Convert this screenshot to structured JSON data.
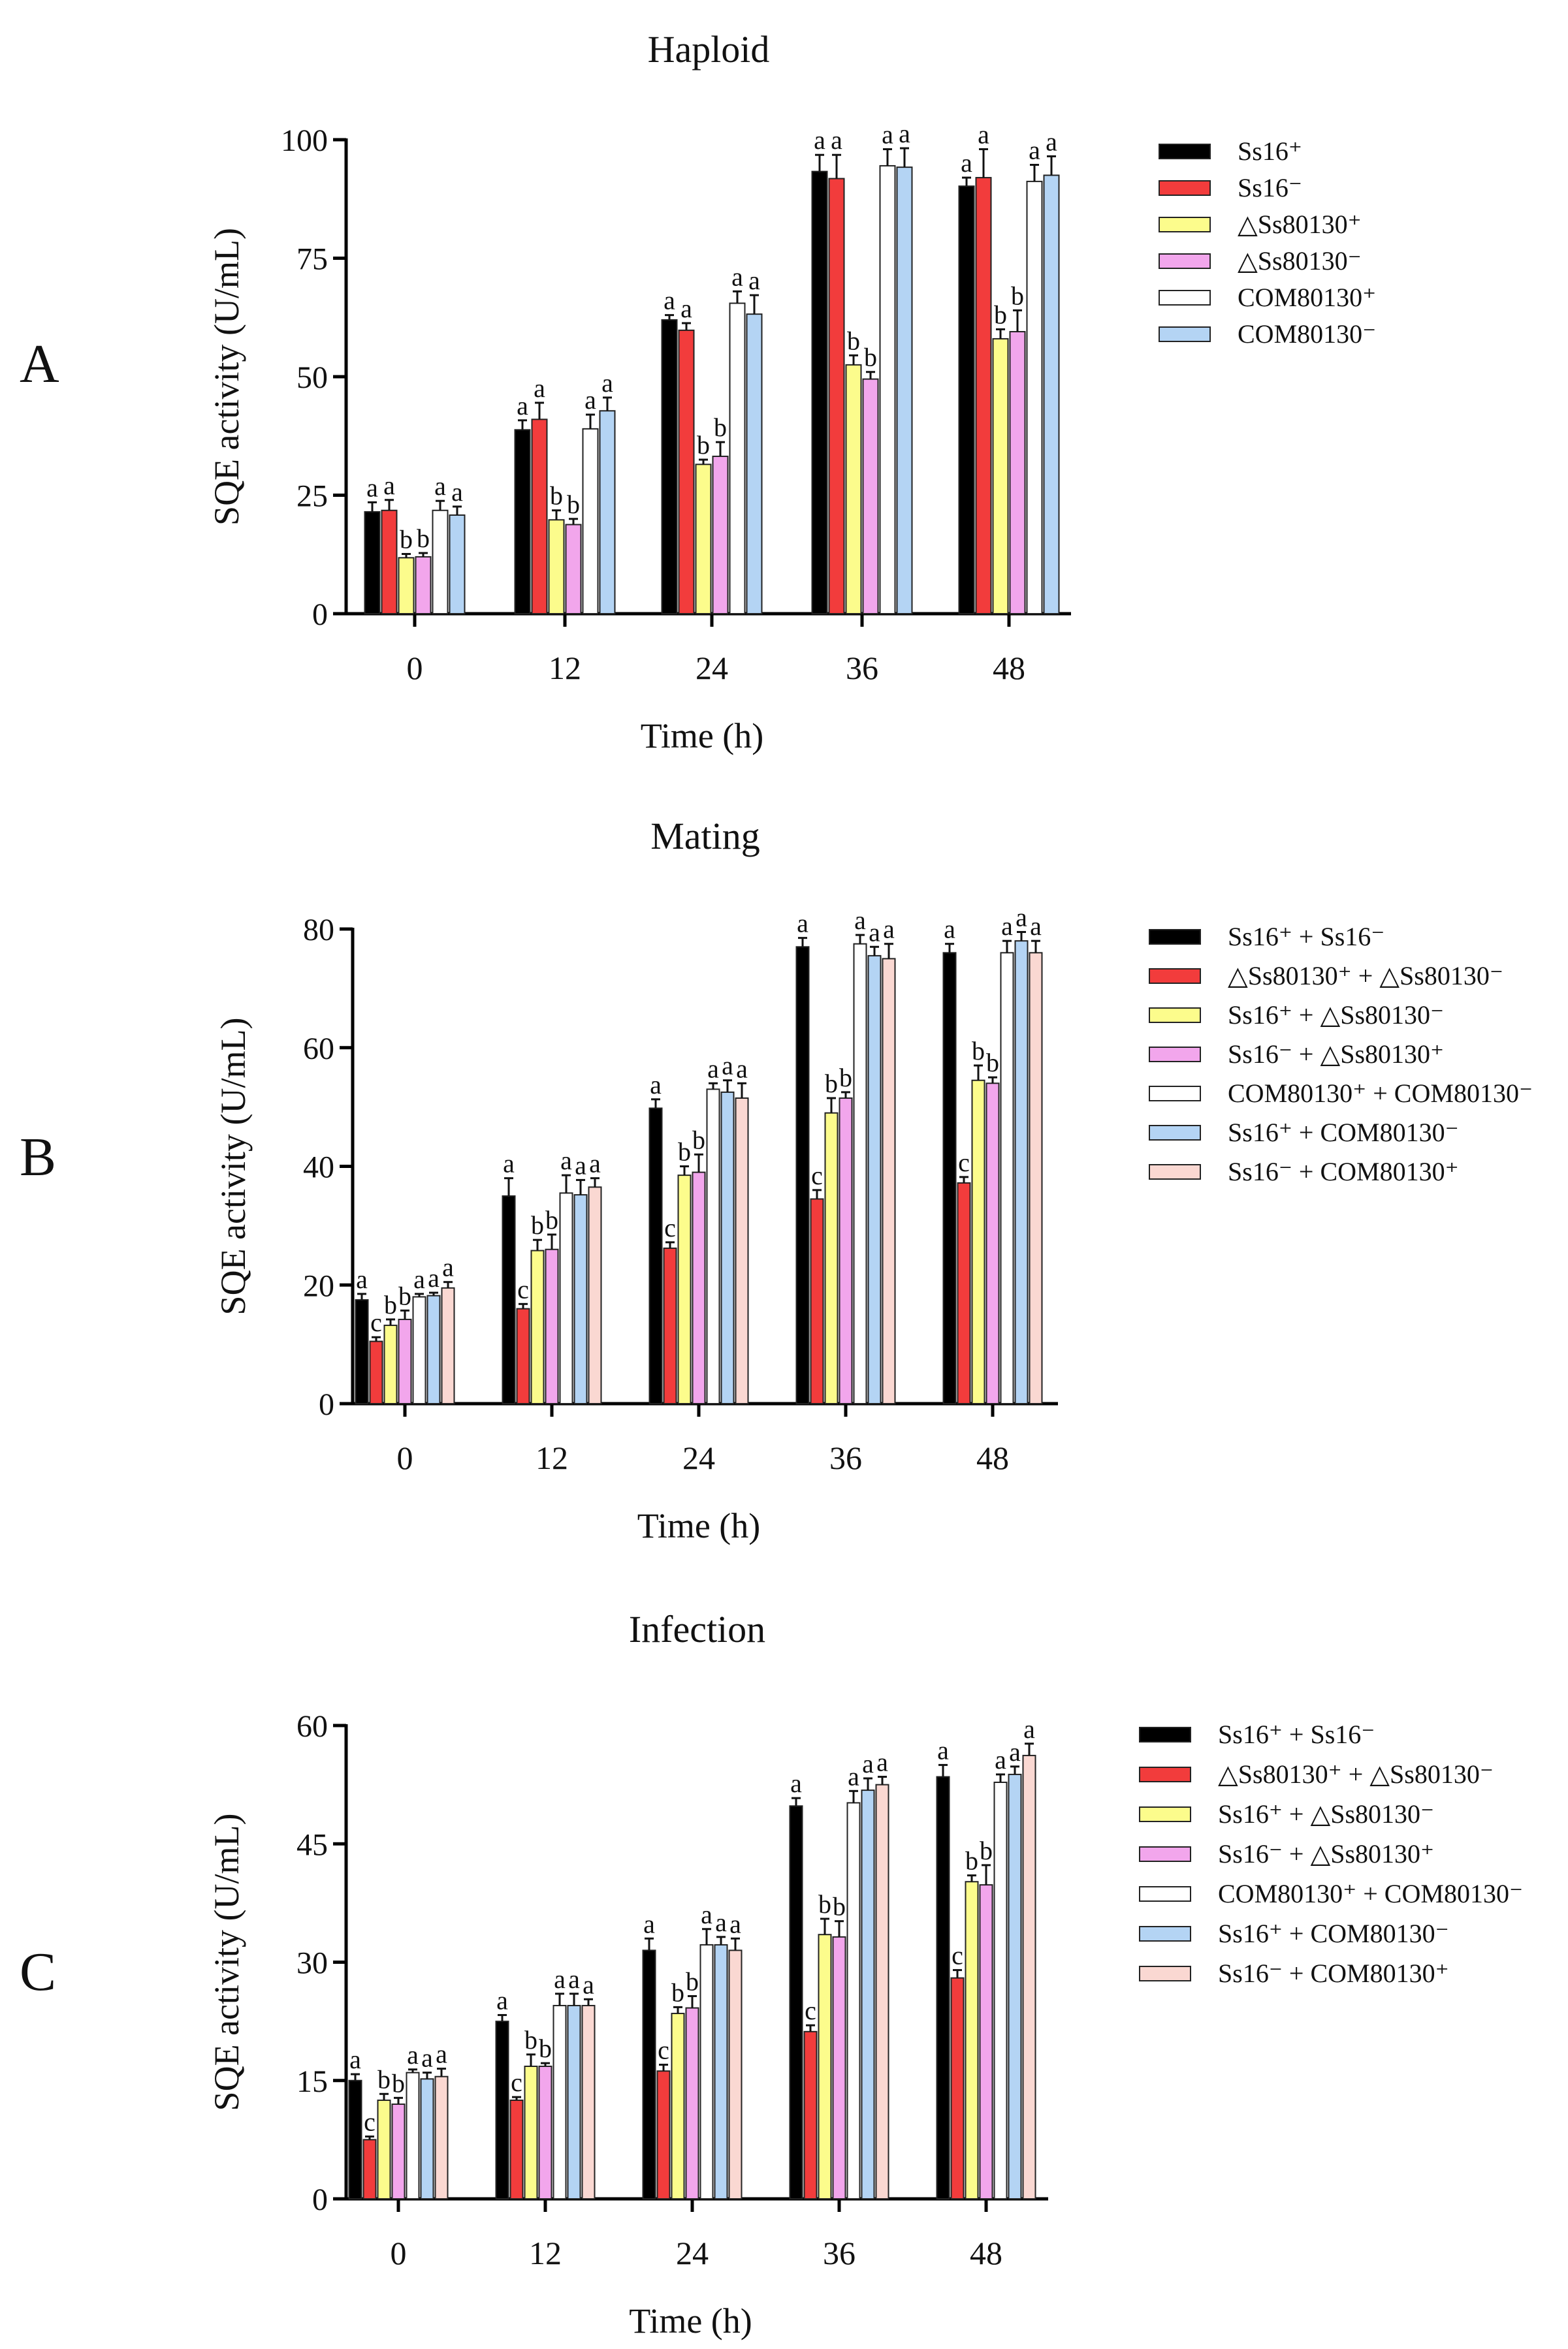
{
  "figure": {
    "panels": [
      "A",
      "B",
      "C"
    ]
  },
  "colors": {
    "black": "#000000",
    "red": "#f23c3c",
    "yellow": "#fcfc8c",
    "pink": "#f2a6ec",
    "white": "#ffffff",
    "lightblue": "#b4d4f4",
    "lightpink": "#fad8d2"
  },
  "chart_data": [
    {
      "panel": "A",
      "type": "bar",
      "title": "Haploid",
      "xlabel": "Time (h)",
      "ylabel": "SQE activity (U/mL)",
      "ylim": [
        0,
        100
      ],
      "yticks": [
        0,
        25,
        50,
        75,
        100
      ],
      "categories": [
        "0",
        "12",
        "24",
        "36",
        "48"
      ],
      "legend_position": "top-right",
      "series": [
        {
          "name": "Ss16⁺",
          "color_key": "black",
          "values": [
            21.5,
            38.8,
            62.0,
            93.3,
            90.2
          ],
          "errors": [
            2.0,
            2.0,
            1.0,
            3.5,
            1.8
          ],
          "letters": [
            "a",
            "a",
            "a",
            "a",
            "a"
          ]
        },
        {
          "name": "Ss16⁻",
          "color_key": "red",
          "values": [
            21.8,
            41.0,
            59.8,
            91.8,
            92.0
          ],
          "errors": [
            2.2,
            3.5,
            1.5,
            5.0,
            6.0
          ],
          "letters": [
            "a",
            "a",
            "a",
            "a",
            "a"
          ]
        },
        {
          "name": "△Ss80130⁺",
          "color_key": "yellow",
          "values": [
            11.8,
            19.8,
            31.5,
            52.5,
            58.0
          ],
          "errors": [
            0.8,
            2.0,
            1.0,
            2.0,
            2.0
          ],
          "letters": [
            "b",
            "b",
            "b",
            "b",
            "b"
          ]
        },
        {
          "name": "△Ss80130⁻",
          "color_key": "pink",
          "values": [
            12.0,
            18.8,
            33.2,
            49.5,
            59.5
          ],
          "errors": [
            0.8,
            1.2,
            3.0,
            1.5,
            4.5
          ],
          "letters": [
            "b",
            "b",
            "b",
            "b",
            "b"
          ]
        },
        {
          "name": "COM80130⁺",
          "color_key": "white",
          "values": [
            21.8,
            39.0,
            65.5,
            94.5,
            91.2
          ],
          "errors": [
            2.0,
            3.0,
            2.5,
            3.5,
            3.5
          ],
          "letters": [
            "a",
            "a",
            "a",
            "a",
            "a"
          ]
        },
        {
          "name": "COM80130⁻",
          "color_key": "lightblue",
          "values": [
            20.8,
            42.8,
            63.2,
            94.2,
            92.5
          ],
          "errors": [
            1.8,
            2.8,
            4.0,
            4.0,
            4.0
          ],
          "letters": [
            "a",
            "a",
            "a",
            "a",
            "a"
          ]
        }
      ]
    },
    {
      "panel": "B",
      "type": "bar",
      "title": "Mating",
      "xlabel": "Time (h)",
      "ylabel": "SQE activity (U/mL)",
      "ylim": [
        0,
        80
      ],
      "yticks": [
        0,
        20,
        40,
        60,
        80
      ],
      "categories": [
        "0",
        "12",
        "24",
        "36",
        "48"
      ],
      "legend_position": "top-right",
      "series": [
        {
          "name": "Ss16⁺ + Ss16⁻",
          "color_key": "black",
          "values": [
            17.5,
            35.0,
            49.8,
            77.0,
            76.0
          ],
          "errors": [
            1.0,
            3.0,
            1.5,
            1.5,
            1.5
          ],
          "letters": [
            "a",
            "a",
            "a",
            "a",
            "a"
          ]
        },
        {
          "name": "△Ss80130⁺ + △Ss80130⁻",
          "color_key": "red",
          "values": [
            10.5,
            16.0,
            26.2,
            34.5,
            37.2
          ],
          "errors": [
            0.7,
            0.8,
            1.0,
            1.5,
            1.0
          ],
          "letters": [
            "c",
            "c",
            "c",
            "c",
            "c"
          ]
        },
        {
          "name": "Ss16⁺ + △Ss80130⁻",
          "color_key": "yellow",
          "values": [
            13.2,
            25.8,
            38.5,
            49.0,
            54.5
          ],
          "errors": [
            1.0,
            1.8,
            1.5,
            2.5,
            2.5
          ],
          "letters": [
            "b",
            "b",
            "b",
            "b",
            "b"
          ]
        },
        {
          "name": "Ss16⁻ + △Ss80130⁺",
          "color_key": "pink",
          "values": [
            14.2,
            26.0,
            39.0,
            51.5,
            54.0
          ],
          "errors": [
            1.5,
            2.5,
            3.0,
            1.0,
            1.0
          ],
          "letters": [
            "b",
            "b",
            "b",
            "b",
            "b"
          ]
        },
        {
          "name": "COM80130⁺ + COM80130⁻",
          "color_key": "white",
          "values": [
            18.0,
            35.5,
            53.0,
            77.5,
            76.0
          ],
          "errors": [
            0.5,
            3.0,
            1.0,
            1.5,
            2.0
          ],
          "letters": [
            "a",
            "a",
            "a",
            "a",
            "a"
          ]
        },
        {
          "name": "Ss16⁺ + COM80130⁻",
          "color_key": "lightblue",
          "values": [
            18.2,
            35.2,
            52.5,
            75.5,
            78.0
          ],
          "errors": [
            0.5,
            2.5,
            2.0,
            1.5,
            1.5
          ],
          "letters": [
            "a",
            "a",
            "a",
            "a",
            "a"
          ]
        },
        {
          "name": "Ss16⁻ + COM80130⁺",
          "color_key": "lightpink",
          "values": [
            19.5,
            36.5,
            51.5,
            75.0,
            76.0
          ],
          "errors": [
            1.0,
            1.5,
            2.5,
            2.5,
            2.0
          ],
          "letters": [
            "a",
            "a",
            "a",
            "a",
            "a"
          ]
        }
      ]
    },
    {
      "panel": "C",
      "type": "bar",
      "title": "Infection",
      "xlabel": "Time (h)",
      "ylabel": "SQE activity (U/mL)",
      "ylim": [
        0,
        60
      ],
      "yticks": [
        0,
        15,
        30,
        45,
        60
      ],
      "categories": [
        "0",
        "12",
        "24",
        "36",
        "48"
      ],
      "legend_position": "top-right",
      "series": [
        {
          "name": "Ss16⁺ + Ss16⁻",
          "color_key": "black",
          "values": [
            15.0,
            22.5,
            31.5,
            49.8,
            53.5
          ],
          "errors": [
            0.8,
            0.8,
            1.5,
            1.0,
            1.5
          ],
          "letters": [
            "a",
            "a",
            "a",
            "a",
            "a"
          ]
        },
        {
          "name": "△Ss80130⁺ + △Ss80130⁻",
          "color_key": "red",
          "values": [
            7.5,
            12.5,
            16.2,
            21.2,
            28.0
          ],
          "errors": [
            0.4,
            0.4,
            0.8,
            0.8,
            1.0
          ],
          "letters": [
            "c",
            "c",
            "c",
            "c",
            "c"
          ]
        },
        {
          "name": "Ss16⁺ + △Ss80130⁻",
          "color_key": "yellow",
          "values": [
            12.5,
            16.8,
            23.5,
            33.5,
            40.2
          ],
          "errors": [
            0.8,
            1.5,
            0.8,
            2.0,
            0.8
          ],
          "letters": [
            "b",
            "b",
            "b",
            "b",
            "b"
          ]
        },
        {
          "name": "Ss16⁻ + △Ss80130⁺",
          "color_key": "pink",
          "values": [
            12.0,
            16.8,
            24.2,
            33.2,
            39.8
          ],
          "errors": [
            0.8,
            0.4,
            1.5,
            2.0,
            2.5
          ],
          "letters": [
            "b",
            "b",
            "b",
            "b",
            "b"
          ]
        },
        {
          "name": "COM80130⁺ + COM80130⁻",
          "color_key": "white",
          "values": [
            16.0,
            24.5,
            32.2,
            50.2,
            52.8
          ],
          "errors": [
            0.4,
            1.5,
            2.0,
            1.5,
            1.0
          ],
          "letters": [
            "a",
            "a",
            "a",
            "a",
            "a"
          ]
        },
        {
          "name": "Ss16⁺ + COM80130⁻",
          "color_key": "lightblue",
          "values": [
            15.2,
            24.5,
            32.2,
            51.8,
            53.8
          ],
          "errors": [
            0.8,
            1.5,
            1.0,
            1.5,
            1.0
          ],
          "letters": [
            "a",
            "a",
            "a",
            "a",
            "a"
          ]
        },
        {
          "name": "Ss16⁻ + COM80130⁺",
          "color_key": "lightpink",
          "values": [
            15.5,
            24.5,
            31.5,
            52.5,
            56.2
          ],
          "errors": [
            1.0,
            0.8,
            1.5,
            1.0,
            1.5
          ],
          "letters": [
            "a",
            "a",
            "a",
            "a",
            "a"
          ]
        }
      ]
    }
  ]
}
